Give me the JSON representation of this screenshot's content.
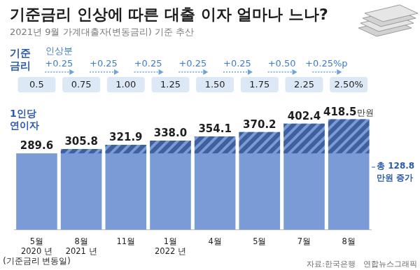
{
  "chart_data": {
    "type": "bar",
    "title": "기준금리 인상에 따른 대출 이자 얼마나 느나?",
    "subtitle": "2021년 9월 가계대출자(변동금리) 기준 추산",
    "categories": [
      "5월\n2020 년\n(기준금리 변동일)",
      "8월\n2021 년",
      "11월",
      "1월\n2022 년",
      "4월",
      "5월",
      "7월",
      "8월"
    ],
    "series": [
      {
        "name": "1인당\n연이자",
        "color": "#7b9bd6",
        "values": [
          289.6,
          305.8,
          321.9,
          338.0,
          354.1,
          370.2,
          402.4,
          418.5
        ],
        "value_labels": [
          "289.6",
          "305.8",
          "321.9",
          "338.0",
          "354.1",
          "370.2",
          "402.4",
          "418.5만원"
        ]
      }
    ],
    "ylim": [
      0,
      420
    ],
    "grid": false,
    "tick_labels": "x",
    "data_labels": true,
    "base_rate": {
      "label": "기준\n금리",
      "values": [
        0.5,
        0.75,
        1.0,
        1.25,
        1.5,
        1.75,
        2.25,
        2.5
      ],
      "value_labels": [
        "0.5",
        "0.75",
        "1.00",
        "1.25",
        "1.50",
        "1.75",
        "2.25",
        "2.50%"
      ]
    },
    "rate_increase": {
      "label": "인상분",
      "values": [
        0.25,
        0.25,
        0.25,
        0.25,
        0.25,
        0.5,
        0.25
      ],
      "value_labels": [
        "+0.25",
        "+0.25",
        "+0.25",
        "+0.25",
        "+0.25",
        "+0.50",
        "+0.25%p"
      ]
    },
    "annotation": "총 128.8\n만원 증가",
    "source": "자료:한국은행",
    "credit": "연합뉴스그래픽"
  }
}
